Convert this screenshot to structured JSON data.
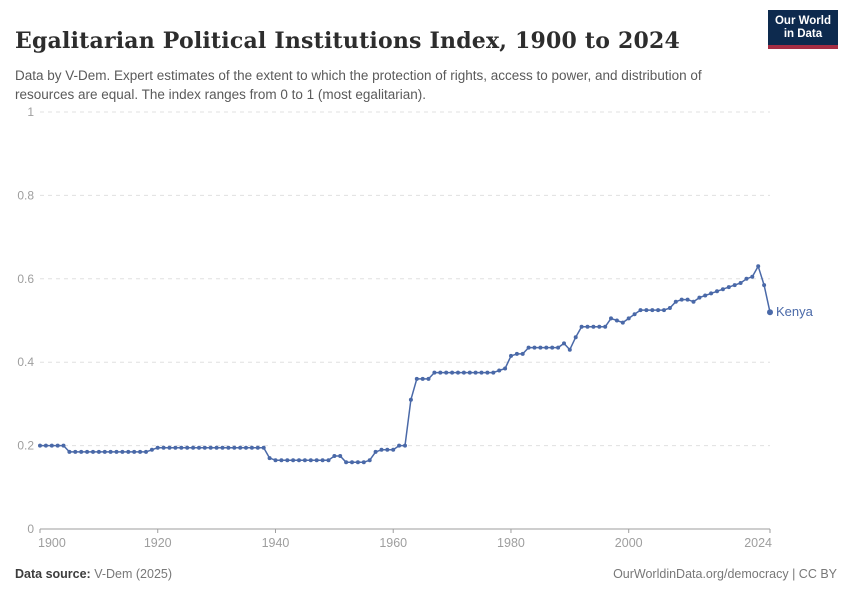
{
  "header": {
    "title": "Egalitarian Political Institutions Index, 1900 to 2024",
    "subtitle": "Data by V-Dem. Expert estimates of the extent to which the protection of rights, access to power, and distribution of resources are equal. The index ranges from 0 to 1 (most egalitarian).",
    "logo": {
      "line1": "Our World",
      "line2": "in Data",
      "bg_color": "#0d2a4e",
      "accent_color": "#a52e44"
    }
  },
  "chart_data": {
    "type": "line",
    "title": "Egalitarian Political Institutions Index, 1900 to 2024",
    "xlabel": "",
    "ylabel": "",
    "x": {
      "start_year": 1900,
      "end_year": 2024,
      "ticks": [
        1900,
        1920,
        1940,
        1960,
        1980,
        2000,
        2024
      ]
    },
    "y": {
      "range": [
        0,
        1
      ],
      "ticks": [
        0,
        0.2,
        0.4,
        0.6,
        0.8,
        1
      ]
    },
    "grid": "horizontal-dashed",
    "legend_position": "end-of-line-label",
    "series": [
      {
        "name": "Kenya",
        "color": "#4a69a8",
        "values": [
          0.2,
          0.2,
          0.2,
          0.2,
          0.2,
          0.185,
          0.185,
          0.185,
          0.185,
          0.185,
          0.185,
          0.185,
          0.185,
          0.185,
          0.185,
          0.185,
          0.185,
          0.185,
          0.185,
          0.19,
          0.195,
          0.195,
          0.195,
          0.195,
          0.195,
          0.195,
          0.195,
          0.195,
          0.195,
          0.195,
          0.195,
          0.195,
          0.195,
          0.195,
          0.195,
          0.195,
          0.195,
          0.195,
          0.195,
          0.17,
          0.165,
          0.165,
          0.165,
          0.165,
          0.165,
          0.165,
          0.165,
          0.165,
          0.165,
          0.165,
          0.175,
          0.175,
          0.16,
          0.16,
          0.16,
          0.16,
          0.165,
          0.185,
          0.19,
          0.19,
          0.19,
          0.2,
          0.2,
          0.31,
          0.36,
          0.36,
          0.36,
          0.375,
          0.375,
          0.375,
          0.375,
          0.375,
          0.375,
          0.375,
          0.375,
          0.375,
          0.375,
          0.375,
          0.38,
          0.385,
          0.415,
          0.42,
          0.42,
          0.435,
          0.435,
          0.435,
          0.435,
          0.435,
          0.435,
          0.445,
          0.43,
          0.46,
          0.485,
          0.485,
          0.485,
          0.485,
          0.485,
          0.505,
          0.5,
          0.495,
          0.505,
          0.515,
          0.525,
          0.525,
          0.525,
          0.525,
          0.525,
          0.53,
          0.545,
          0.55,
          0.55,
          0.545,
          0.555,
          0.56,
          0.565,
          0.57,
          0.575,
          0.58,
          0.585,
          0.59,
          0.6,
          0.605,
          0.63,
          0.585,
          0.52
        ]
      }
    ],
    "style": {
      "grid_color": "#e0e0e0",
      "axis_color": "#9e9e9e",
      "tick_label_color": "#9e9e9e"
    }
  },
  "footer": {
    "source_label": "Data source:",
    "source_value": " V-Dem (2025)",
    "credit": "OurWorldinData.org/democracy | CC BY"
  }
}
